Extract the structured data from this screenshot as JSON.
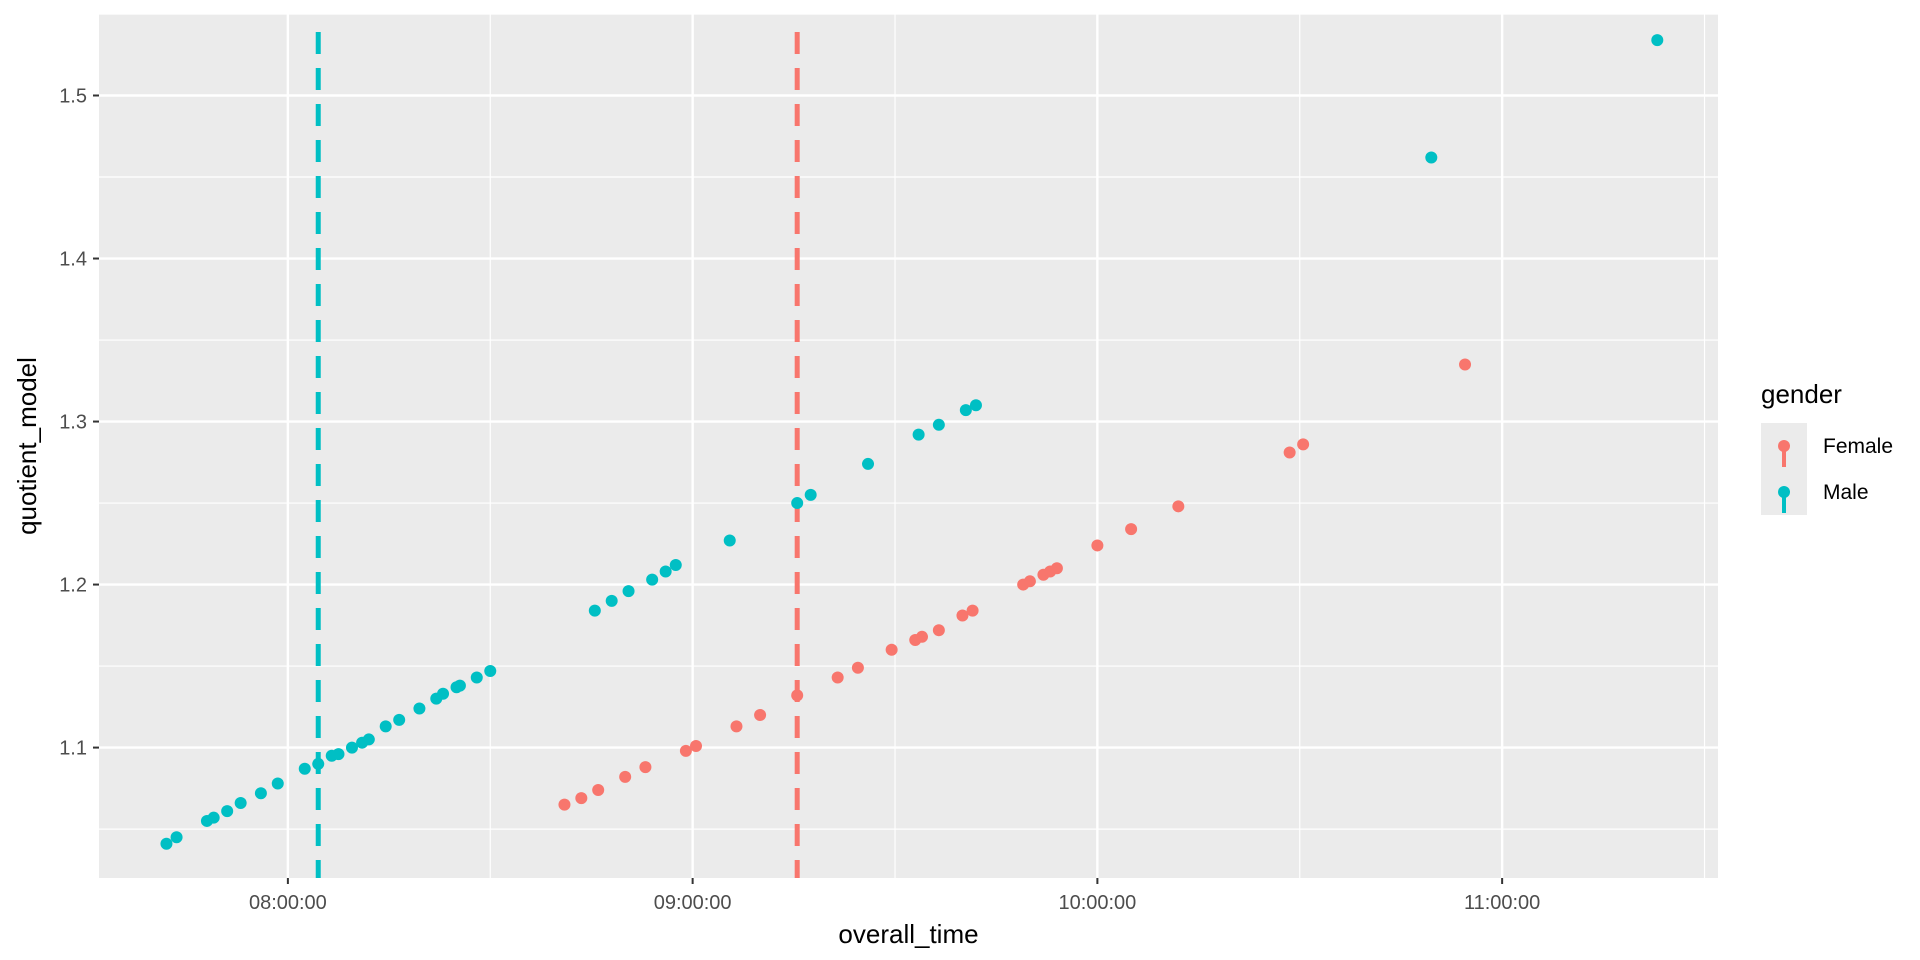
{
  "chart_data": {
    "type": "scatter",
    "xlabel": "overall_time",
    "ylabel": "quotient_model",
    "x_unit": "time (HH:MM:SS)",
    "xlim": [
      "07:32:00",
      "11:32:00"
    ],
    "ylim": [
      1.02,
      1.55
    ],
    "x_ticks": [
      "08:00:00",
      "09:00:00",
      "10:00:00",
      "11:00:00"
    ],
    "y_ticks": [
      "1.1",
      "1.2",
      "1.3",
      "1.4",
      "1.5"
    ],
    "grid": true,
    "legend": {
      "title": "gender",
      "position": "right",
      "entries": [
        "Female",
        "Male"
      ]
    },
    "colors": {
      "Female": "#F8766D",
      "Male": "#00BFC4",
      "panel": "#EBEBEB",
      "grid": "#FFFFFF"
    },
    "vlines": [
      {
        "series": "Male",
        "x": "08:04:30",
        "style": "dashed"
      },
      {
        "series": "Female",
        "x": "09:15:30",
        "style": "dashed"
      }
    ],
    "series": [
      {
        "name": "Female",
        "points": [
          [
            "08:41:00",
            1.065
          ],
          [
            "08:43:30",
            1.069
          ],
          [
            "08:46:00",
            1.074
          ],
          [
            "08:50:00",
            1.082
          ],
          [
            "08:53:00",
            1.088
          ],
          [
            "08:59:00",
            1.098
          ],
          [
            "09:00:30",
            1.101
          ],
          [
            "09:06:30",
            1.113
          ],
          [
            "09:10:00",
            1.12
          ],
          [
            "09:15:30",
            1.132
          ],
          [
            "09:21:30",
            1.143
          ],
          [
            "09:24:30",
            1.149
          ],
          [
            "09:29:30",
            1.16
          ],
          [
            "09:33:00",
            1.166
          ],
          [
            "09:34:00",
            1.168
          ],
          [
            "09:36:30",
            1.172
          ],
          [
            "09:40:00",
            1.181
          ],
          [
            "09:41:30",
            1.184
          ],
          [
            "09:49:00",
            1.2
          ],
          [
            "09:50:00",
            1.202
          ],
          [
            "09:52:00",
            1.206
          ],
          [
            "09:53:00",
            1.208
          ],
          [
            "09:54:00",
            1.21
          ],
          [
            "10:00:00",
            1.224
          ],
          [
            "10:05:00",
            1.234
          ],
          [
            "10:12:00",
            1.248
          ],
          [
            "10:28:30",
            1.281
          ],
          [
            "10:30:30",
            1.286
          ],
          [
            "10:54:30",
            1.335
          ]
        ]
      },
      {
        "name": "Male",
        "points": [
          [
            "07:42:00",
            1.041
          ],
          [
            "07:43:30",
            1.045
          ],
          [
            "07:48:00",
            1.055
          ],
          [
            "07:49:00",
            1.057
          ],
          [
            "07:51:00",
            1.061
          ],
          [
            "07:53:00",
            1.066
          ],
          [
            "07:56:00",
            1.072
          ],
          [
            "07:58:30",
            1.078
          ],
          [
            "08:02:30",
            1.087
          ],
          [
            "08:04:30",
            1.09
          ],
          [
            "08:06:30",
            1.095
          ],
          [
            "08:07:30",
            1.096
          ],
          [
            "08:09:30",
            1.1
          ],
          [
            "08:11:00",
            1.103
          ],
          [
            "08:12:00",
            1.105
          ],
          [
            "08:14:30",
            1.113
          ],
          [
            "08:16:30",
            1.117
          ],
          [
            "08:19:30",
            1.124
          ],
          [
            "08:22:00",
            1.13
          ],
          [
            "08:23:00",
            1.133
          ],
          [
            "08:25:00",
            1.137
          ],
          [
            "08:25:30",
            1.138
          ],
          [
            "08:28:00",
            1.143
          ],
          [
            "08:30:00",
            1.147
          ],
          [
            "08:45:30",
            1.184
          ],
          [
            "08:48:00",
            1.19
          ],
          [
            "08:50:30",
            1.196
          ],
          [
            "08:54:00",
            1.203
          ],
          [
            "08:56:00",
            1.208
          ],
          [
            "08:57:30",
            1.212
          ],
          [
            "09:05:30",
            1.227
          ],
          [
            "09:15:30",
            1.25
          ],
          [
            "09:17:30",
            1.255
          ],
          [
            "09:26:00",
            1.274
          ],
          [
            "09:33:30",
            1.292
          ],
          [
            "09:36:30",
            1.298
          ],
          [
            "09:40:30",
            1.307
          ],
          [
            "09:42:00",
            1.31
          ],
          [
            "10:49:30",
            1.462
          ],
          [
            "11:23:00",
            1.534
          ]
        ]
      }
    ]
  }
}
